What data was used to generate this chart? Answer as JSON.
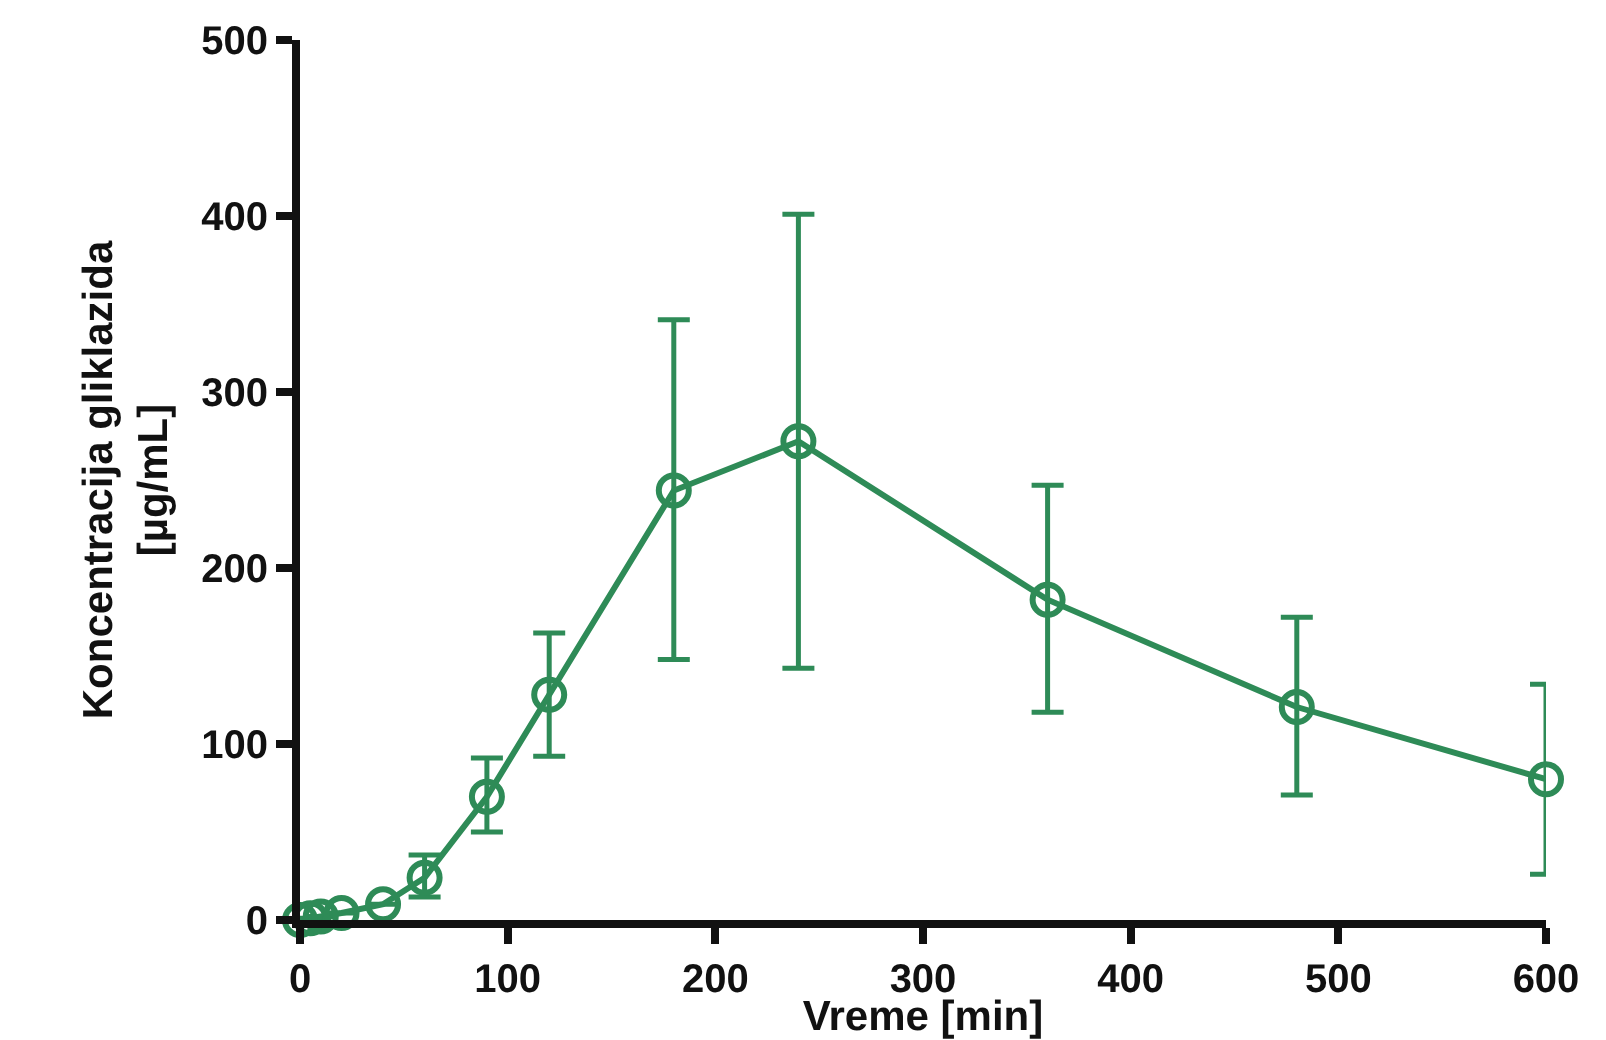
{
  "chart_data": {
    "type": "line",
    "xlabel": "Vreme [min]",
    "ylabel": "Koncentracija gliklazida\n[µg/mL]",
    "x": [
      0,
      5,
      10,
      20,
      40,
      60,
      90,
      120,
      180,
      240,
      360,
      480,
      600
    ],
    "series": [
      {
        "color": "#2e8b57",
        "values": [
          0,
          1,
          2,
          4,
          9,
          24,
          70,
          128,
          244,
          272,
          182,
          121,
          80
        ],
        "errors": [
          null,
          null,
          null,
          null,
          null,
          [
            13,
            37
          ],
          [
            50,
            92
          ],
          [
            93,
            163
          ],
          [
            148,
            341
          ],
          [
            143,
            401
          ],
          [
            118,
            247
          ],
          [
            71,
            172
          ],
          [
            26,
            134
          ]
        ]
      }
    ],
    "xlim": [
      0,
      600
    ],
    "xticks": [
      0,
      100,
      200,
      300,
      400,
      500,
      600
    ],
    "ylim": [
      0,
      500
    ],
    "yticks": [
      0,
      100,
      200,
      300,
      400,
      500
    ],
    "grid": false,
    "marker": "circle",
    "line_style": "solid"
  }
}
